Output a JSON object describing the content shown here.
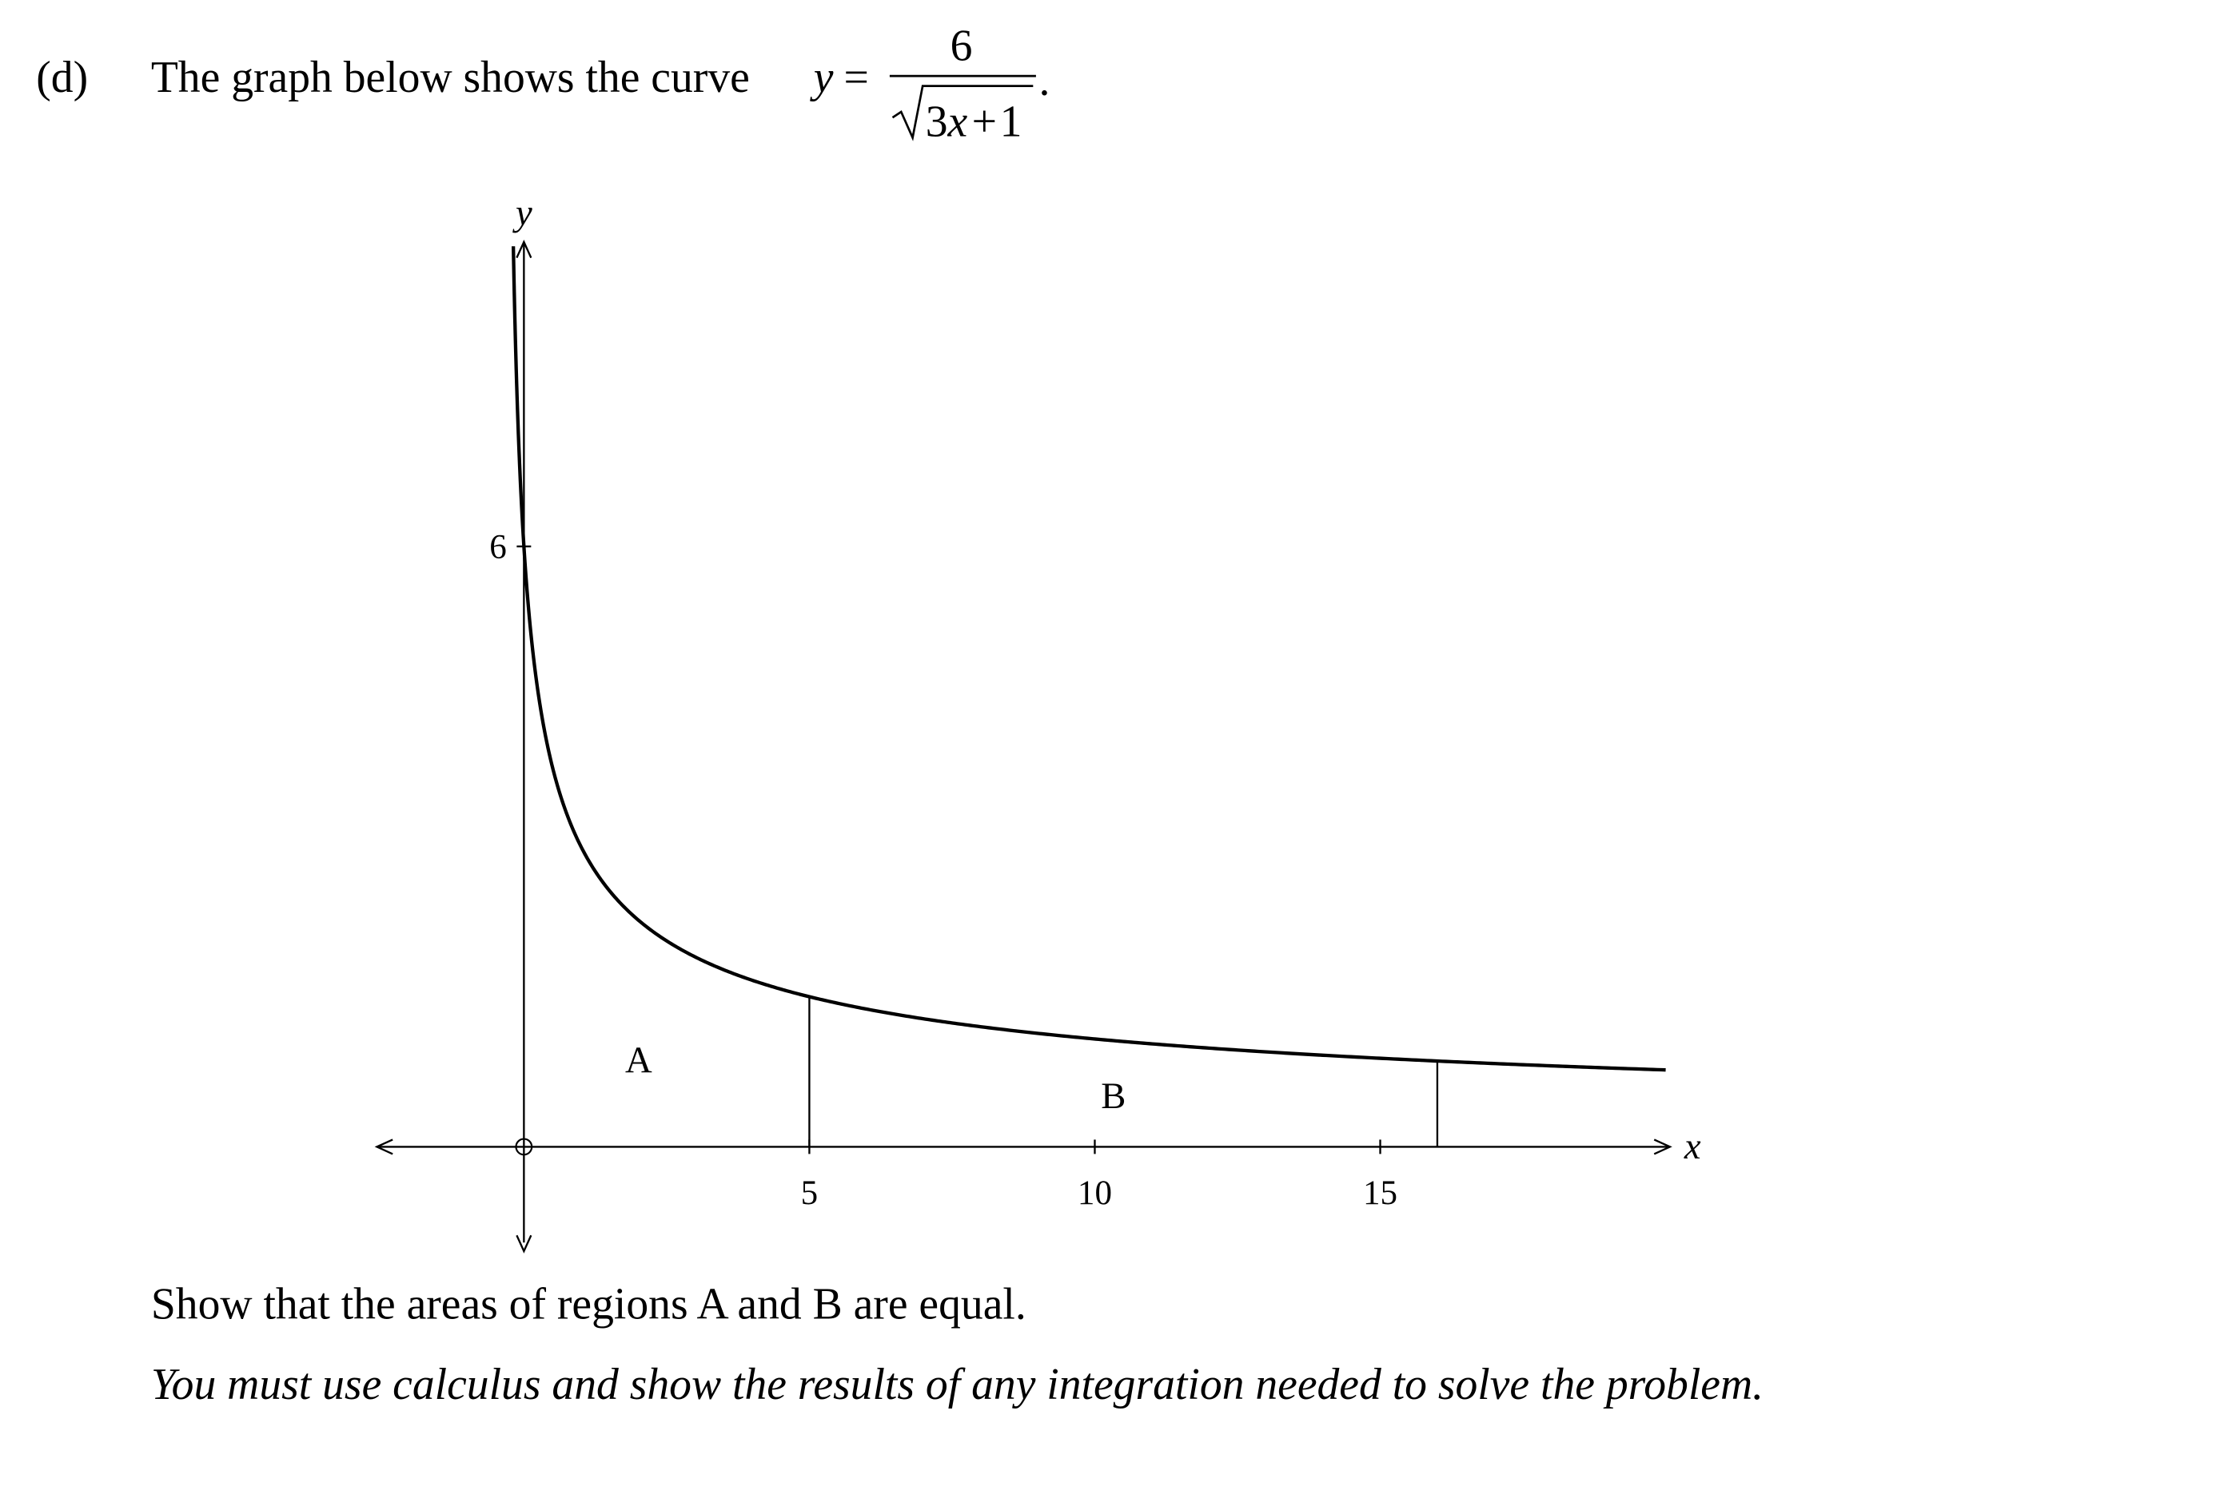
{
  "question": {
    "label": "(d)",
    "text": "The graph below shows the curve",
    "formula": {
      "lhs": "y",
      "equals": "=",
      "numerator": 6,
      "radicand": {
        "coefficient": 3,
        "variable": "x",
        "operator": "+",
        "constant": 1
      },
      "end": "."
    }
  },
  "graph": {
    "x_label": "x",
    "y_label": "y",
    "xlim": [
      -2.5,
      20
    ],
    "ylim": [
      -1,
      9
    ],
    "xticks": [
      5,
      10,
      15
    ],
    "yticks": [
      6
    ],
    "regions": [
      {
        "label": "A"
      },
      {
        "label": "B"
      }
    ],
    "boundaries": [
      5,
      16
    ]
  },
  "instructions": [
    "Show that the areas of regions A and B are equal.",
    "You must use calculus and show the results of any integration needed to solve the problem."
  ]
}
